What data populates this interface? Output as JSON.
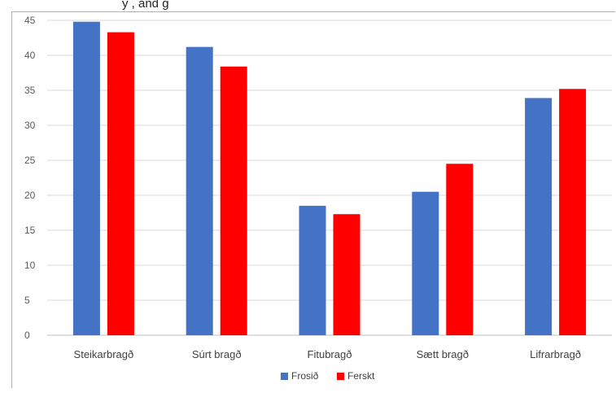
{
  "top_partial_text": "y , and g",
  "chart_data": {
    "type": "bar",
    "categories": [
      "Steikarbragð",
      "Súrt bragð",
      "Fitubragð",
      "Sætt bragð",
      "Lifrarbragð"
    ],
    "series": [
      {
        "name": "Frosið",
        "color": "#4472c4",
        "values": [
          44.8,
          41.2,
          18.5,
          20.5,
          33.9
        ]
      },
      {
        "name": "Ferskt",
        "color": "#ff0000",
        "values": [
          43.3,
          38.4,
          17.3,
          24.5,
          35.2
        ]
      }
    ],
    "ylim": [
      0,
      45
    ],
    "yticks": [
      0,
      5,
      10,
      15,
      20,
      25,
      30,
      35,
      40,
      45
    ],
    "grid": true,
    "legend_position": "bottom"
  }
}
